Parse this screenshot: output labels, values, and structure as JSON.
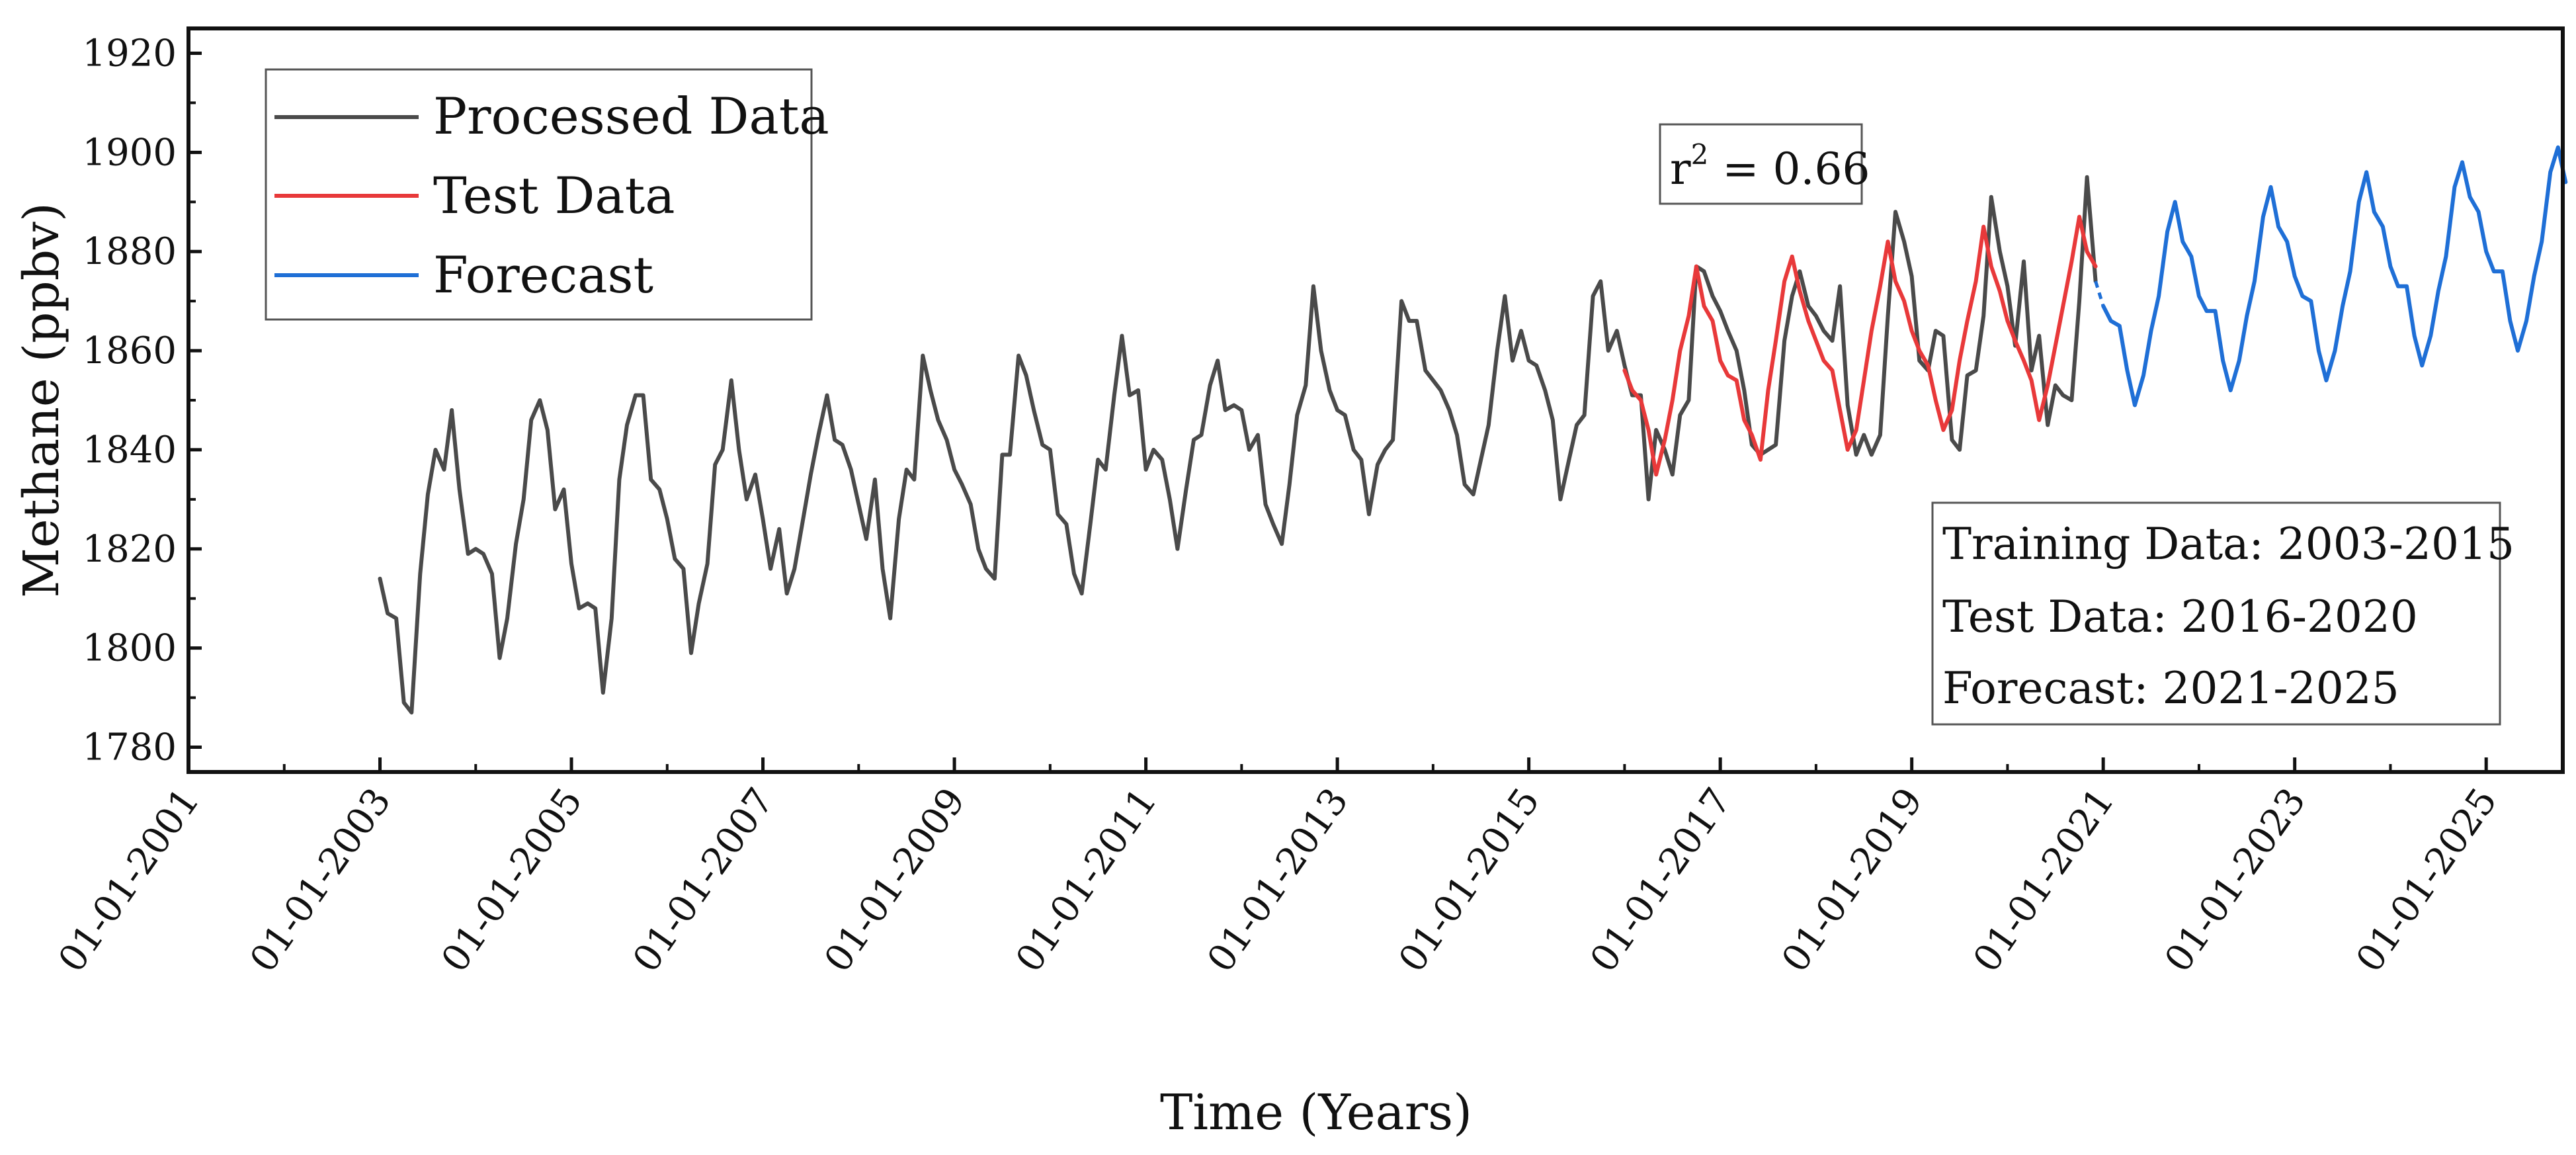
{
  "chart_data": {
    "type": "line",
    "title": "",
    "xlabel": "Time (Years)",
    "ylabel": "Methane (ppbv)",
    "x_range": [
      2001.0,
      2025.8
    ],
    "ylim": [
      1775,
      1925
    ],
    "y_ticks": [
      1780,
      1800,
      1820,
      1840,
      1860,
      1880,
      1900,
      1920
    ],
    "x_ticks": [
      {
        "x": 2001,
        "label": "01-01-2001"
      },
      {
        "x": 2003,
        "label": "01-01-2003"
      },
      {
        "x": 2005,
        "label": "01-01-2005"
      },
      {
        "x": 2007,
        "label": "01-01-2007"
      },
      {
        "x": 2009,
        "label": "01-01-2009"
      },
      {
        "x": 2011,
        "label": "01-01-2011"
      },
      {
        "x": 2013,
        "label": "01-01-2013"
      },
      {
        "x": 2015,
        "label": "01-01-2015"
      },
      {
        "x": 2017,
        "label": "01-01-2017"
      },
      {
        "x": 2019,
        "label": "01-01-2019"
      },
      {
        "x": 2021,
        "label": "01-01-2021"
      },
      {
        "x": 2023,
        "label": "01-01-2023"
      },
      {
        "x": 2025,
        "label": "01-01-2025"
      }
    ],
    "legend": [
      {
        "name": "Processed Data",
        "color": "#4a4a4a"
      },
      {
        "name": "Test Data",
        "color": "#e8393a"
      },
      {
        "name": "Forecast",
        "color": "#1f6fd6"
      }
    ],
    "annotations": {
      "r2_prefix": "r",
      "r2_exp": "2",
      "r2_value": " = 0.66",
      "info_lines": [
        "Training Data:  2003-2015",
        "Test Data: 2016-2020",
        "Forecast: 2021-2025"
      ]
    },
    "series": [
      {
        "name": "Processed Data",
        "color": "#4a4a4a",
        "x": [
          2003.0,
          2003.08,
          2003.17,
          2003.25,
          2003.33,
          2003.42,
          2003.5,
          2003.58,
          2003.67,
          2003.75,
          2003.83,
          2003.92,
          2004.0,
          2004.08,
          2004.17,
          2004.25,
          2004.33,
          2004.42,
          2004.5,
          2004.58,
          2004.67,
          2004.75,
          2004.83,
          2004.92,
          2005.0,
          2005.08,
          2005.17,
          2005.25,
          2005.33,
          2005.42,
          2005.5,
          2005.58,
          2005.67,
          2005.75,
          2005.83,
          2005.92,
          2006.0,
          2006.08,
          2006.17,
          2006.25,
          2006.33,
          2006.42,
          2006.5,
          2006.58,
          2006.67,
          2006.75,
          2006.83,
          2006.92,
          2007.0,
          2007.08,
          2007.17,
          2007.25,
          2007.33,
          2007.42,
          2007.5,
          2007.58,
          2007.67,
          2007.75,
          2007.83,
          2007.92,
          2008.0,
          2008.08,
          2008.17,
          2008.25,
          2008.33,
          2008.42,
          2008.5,
          2008.58,
          2008.67,
          2008.75,
          2008.83,
          2008.92,
          2009.0,
          2009.08,
          2009.17,
          2009.25,
          2009.33,
          2009.42,
          2009.5,
          2009.58,
          2009.67,
          2009.75,
          2009.83,
          2009.92,
          2010.0,
          2010.08,
          2010.17,
          2010.25,
          2010.33,
          2010.42,
          2010.5,
          2010.58,
          2010.67,
          2010.75,
          2010.83,
          2010.92,
          2011.0,
          2011.08,
          2011.17,
          2011.25,
          2011.33,
          2011.42,
          2011.5,
          2011.58,
          2011.67,
          2011.75,
          2011.83,
          2011.92,
          2012.0,
          2012.08,
          2012.17,
          2012.25,
          2012.33,
          2012.42,
          2012.5,
          2012.58,
          2012.67,
          2012.75,
          2012.83,
          2012.92,
          2013.0,
          2013.08,
          2013.17,
          2013.25,
          2013.33,
          2013.42,
          2013.5,
          2013.58,
          2013.67,
          2013.75,
          2013.83,
          2013.92,
          2014.0,
          2014.08,
          2014.17,
          2014.25,
          2014.33,
          2014.42,
          2014.5,
          2014.58,
          2014.67,
          2014.75,
          2014.83,
          2014.92,
          2015.0,
          2015.08,
          2015.17,
          2015.25,
          2015.33,
          2015.42,
          2015.5,
          2015.58,
          2015.67,
          2015.75,
          2015.83,
          2015.92,
          2016.0,
          2016.08,
          2016.17,
          2016.25,
          2016.33,
          2016.42,
          2016.5,
          2016.58,
          2016.67,
          2016.75,
          2016.83,
          2016.92,
          2017.0,
          2017.08,
          2017.17,
          2017.25,
          2017.33,
          2017.42,
          2017.5,
          2017.58,
          2017.67,
          2017.75,
          2017.83,
          2017.92,
          2018.0,
          2018.08,
          2018.17,
          2018.25,
          2018.33,
          2018.42,
          2018.5,
          2018.58,
          2018.67,
          2018.75,
          2018.83,
          2018.92,
          2019.0,
          2019.08,
          2019.17,
          2019.25,
          2019.33,
          2019.42,
          2019.5,
          2019.58,
          2019.67,
          2019.75,
          2019.83,
          2019.92,
          2020.0,
          2020.08,
          2020.17,
          2020.25,
          2020.33,
          2020.42,
          2020.5,
          2020.58,
          2020.67,
          2020.75,
          2020.83,
          2020.92
        ],
        "y": [
          1814,
          1807,
          1806,
          1789,
          1787,
          1815,
          1831,
          1840,
          1836,
          1848,
          1832,
          1819,
          1820,
          1819,
          1815,
          1798,
          1806,
          1821,
          1830,
          1846,
          1850,
          1844,
          1828,
          1832,
          1817,
          1808,
          1809,
          1808,
          1791,
          1806,
          1834,
          1845,
          1851,
          1851,
          1834,
          1832,
          1826,
          1818,
          1816,
          1799,
          1809,
          1817,
          1837,
          1840,
          1854,
          1840,
          1830,
          1835,
          1826,
          1816,
          1824,
          1811,
          1816,
          1826,
          1835,
          1843,
          1851,
          1842,
          1841,
          1836,
          1829,
          1822,
          1834,
          1816,
          1806,
          1826,
          1836,
          1834,
          1859,
          1852,
          1846,
          1842,
          1836,
          1833,
          1829,
          1820,
          1816,
          1814,
          1839,
          1839,
          1859,
          1855,
          1848,
          1841,
          1840,
          1827,
          1825,
          1815,
          1811,
          1825,
          1838,
          1836,
          1851,
          1863,
          1851,
          1852,
          1836,
          1840,
          1838,
          1830,
          1820,
          1832,
          1842,
          1843,
          1853,
          1858,
          1848,
          1849,
          1848,
          1840,
          1843,
          1829,
          1825,
          1821,
          1833,
          1847,
          1853,
          1873,
          1860,
          1852,
          1848,
          1847,
          1840,
          1838,
          1827,
          1837,
          1840,
          1842,
          1870,
          1866,
          1866,
          1856,
          1854,
          1852,
          1848,
          1843,
          1833,
          1831,
          1838,
          1845,
          1860,
          1871,
          1858,
          1864,
          1858,
          1857,
          1852,
          1846,
          1830,
          1838,
          1845,
          1847,
          1871,
          1874,
          1860,
          1864,
          1857,
          1851,
          1851,
          1830,
          1844,
          1840,
          1835,
          1847,
          1850,
          1877,
          1876,
          1871,
          1868,
          1864,
          1860,
          1852,
          1841,
          1839,
          1840,
          1841,
          1862,
          1871,
          1876,
          1869,
          1867,
          1864,
          1862,
          1873,
          1849,
          1839,
          1843,
          1839,
          1843,
          1867,
          1888,
          1882,
          1875,
          1858,
          1856,
          1864,
          1863,
          1842,
          1840,
          1855,
          1856,
          1867,
          1891,
          1880,
          1873,
          1861,
          1878,
          1856,
          1863,
          1845,
          1853,
          1851,
          1850,
          1870,
          1895,
          1874
        ]
      },
      {
        "name": "Test Data",
        "color": "#e8393a",
        "x": [
          2016.0,
          2016.08,
          2016.17,
          2016.25,
          2016.33,
          2016.42,
          2016.5,
          2016.58,
          2016.67,
          2016.75,
          2016.83,
          2016.92,
          2017.0,
          2017.08,
          2017.17,
          2017.25,
          2017.33,
          2017.42,
          2017.5,
          2017.58,
          2017.67,
          2017.75,
          2017.83,
          2017.92,
          2018.0,
          2018.08,
          2018.17,
          2018.25,
          2018.33,
          2018.42,
          2018.5,
          2018.58,
          2018.67,
          2018.75,
          2018.83,
          2018.92,
          2019.0,
          2019.08,
          2019.17,
          2019.25,
          2019.33,
          2019.42,
          2019.5,
          2019.58,
          2019.67,
          2019.75,
          2019.83,
          2019.92,
          2020.0,
          2020.08,
          2020.17,
          2020.25,
          2020.33,
          2020.42,
          2020.5,
          2020.58,
          2020.67,
          2020.75,
          2020.83,
          2020.92
        ],
        "y": [
          1856,
          1852,
          1850,
          1844,
          1835,
          1842,
          1850,
          1860,
          1867,
          1877,
          1869,
          1866,
          1858,
          1855,
          1854,
          1846,
          1843,
          1838,
          1852,
          1862,
          1874,
          1879,
          1872,
          1866,
          1862,
          1858,
          1856,
          1848,
          1840,
          1844,
          1854,
          1864,
          1873,
          1882,
          1874,
          1870,
          1864,
          1860,
          1857,
          1850,
          1844,
          1848,
          1858,
          1866,
          1874,
          1885,
          1877,
          1872,
          1866,
          1862,
          1858,
          1854,
          1846,
          1853,
          1861,
          1869,
          1878,
          1887,
          1880,
          1877
        ]
      },
      {
        "name": "Forecast",
        "color": "#1f6fd6",
        "x": [
          2021.0,
          2021.08,
          2021.17,
          2021.25,
          2021.33,
          2021.42,
          2021.5,
          2021.58,
          2021.67,
          2021.75,
          2021.83,
          2021.92,
          2022.0,
          2022.08,
          2022.17,
          2022.25,
          2022.33,
          2022.42,
          2022.5,
          2022.58,
          2022.67,
          2022.75,
          2022.83,
          2022.92,
          2023.0,
          2023.08,
          2023.17,
          2023.25,
          2023.33,
          2023.42,
          2023.5,
          2023.58,
          2023.67,
          2023.75,
          2023.83,
          2023.92,
          2024.0,
          2024.08,
          2024.17,
          2024.25,
          2024.33,
          2024.42,
          2024.5,
          2024.58,
          2024.67,
          2024.75,
          2024.83,
          2024.92,
          2025.0,
          2025.08,
          2025.17,
          2025.25,
          2025.33,
          2025.42,
          2025.5,
          2025.58,
          2025.67,
          2025.75,
          2025.83
        ],
        "y": [
          1869,
          1866,
          1865,
          1856,
          1849,
          1855,
          1864,
          1871,
          1884,
          1890,
          1882,
          1879,
          1871,
          1868,
          1868,
          1858,
          1852,
          1858,
          1867,
          1874,
          1887,
          1893,
          1885,
          1882,
          1875,
          1871,
          1870,
          1860,
          1854,
          1860,
          1869,
          1876,
          1890,
          1896,
          1888,
          1885,
          1877,
          1873,
          1873,
          1863,
          1857,
          1863,
          1872,
          1879,
          1893,
          1898,
          1891,
          1888,
          1880,
          1876,
          1876,
          1866,
          1860,
          1866,
          1875,
          1882,
          1896,
          1901,
          1894
        ]
      }
    ],
    "bridge": {
      "x": [
        2020.92,
        2021.0
      ],
      "y": [
        1874,
        1869
      ],
      "color": "#1f6fd6"
    }
  }
}
